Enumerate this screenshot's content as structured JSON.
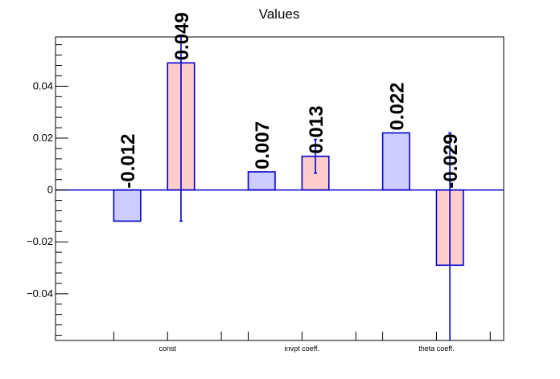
{
  "chart_data": {
    "type": "bar",
    "title": "Values",
    "xlabel": "",
    "ylabel": "",
    "categories": [
      "const",
      "invpt coeff.",
      "theta coeff."
    ],
    "series": [
      {
        "values": [
          -0.012,
          0.007,
          0.022
        ],
        "errors": [
          null,
          null,
          null
        ],
        "color": "#ccccff",
        "labels": [
          "-0.012",
          "0.007",
          "0.022"
        ]
      },
      {
        "values": [
          0.049,
          0.013,
          -0.029
        ],
        "errors": [
          0.061,
          0.0065,
          0.051
        ],
        "color": "#ffcccc",
        "labels": [
          "0.049",
          "0.013",
          "-0.029"
        ]
      }
    ],
    "ylim": [
      -0.058,
      0.059
    ],
    "yticks": [
      -0.04,
      -0.02,
      0,
      0.02,
      0.04
    ],
    "ytick_labels": [
      "−0.04",
      "−0.02",
      "0",
      "0.02",
      "0.04"
    ],
    "grid": false,
    "legend": "none",
    "bar_edge_color": "#0000cc",
    "error_bar_color": "#0000cc"
  }
}
